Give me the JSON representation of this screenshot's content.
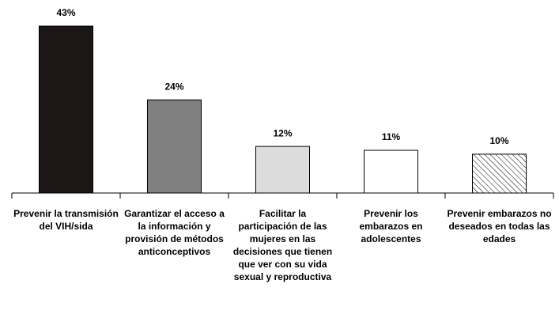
{
  "chart_data": {
    "type": "bar",
    "categories": [
      "Prevenir la transmisión del VIH/sida",
      "Garantizar el acceso a la información y provisión de métodos anticonceptivos",
      "Facilitar la participación de las mujeres en las decisiones que tienen que ver con su vida sexual y reproductiva",
      "Prevenir los embarazos en adolescentes",
      "Prevenir embarazos no deseados en todas las edades"
    ],
    "values": [
      43,
      24,
      12,
      11,
      10
    ],
    "value_labels": [
      "43%",
      "24%",
      "12%",
      "11%",
      "10%"
    ],
    "colors": [
      "#1c1616",
      "#808080",
      "#dcdcdc",
      "#ffffff",
      "#ffffff"
    ],
    "hatched": [
      false,
      false,
      false,
      false,
      true
    ],
    "ylim": [
      0,
      43
    ]
  }
}
